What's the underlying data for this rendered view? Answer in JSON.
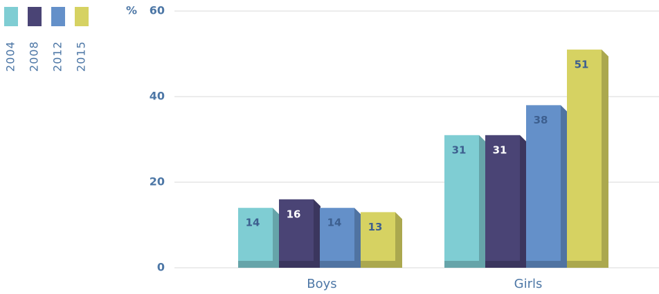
{
  "chart_data": {
    "type": "bar",
    "y_label": "%",
    "categories": [
      "Boys",
      "Girls"
    ],
    "series": [
      {
        "name": "2004",
        "color": "#7fcdd3",
        "values": [
          14,
          31
        ]
      },
      {
        "name": "2008",
        "color": "#4a4475",
        "values": [
          16,
          31
        ]
      },
      {
        "name": "2012",
        "color": "#6490c9",
        "values": [
          14,
          38
        ]
      },
      {
        "name": "2015",
        "color": "#d6d262",
        "values": [
          13,
          51
        ]
      }
    ],
    "ylim": [
      0,
      60
    ],
    "yticks": [
      0,
      20,
      40,
      60
    ],
    "grid": true,
    "legend": "top-left"
  }
}
